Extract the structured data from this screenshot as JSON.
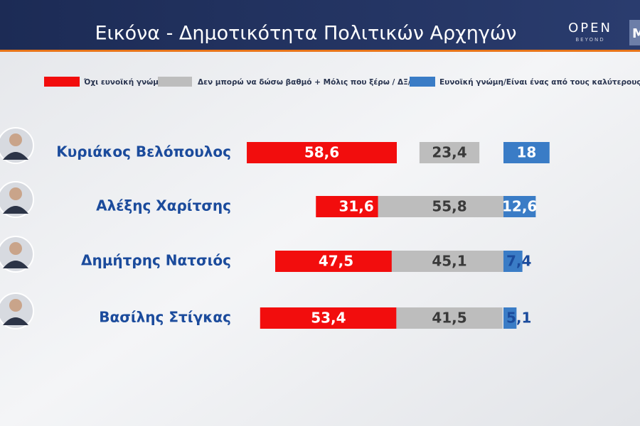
{
  "header": {
    "title": "Εικόνα - Δημοτικότητα Πολιτικών Αρχηγών",
    "logo": "OPEN",
    "logo_sub": "BEYOND",
    "logo_cut": "M"
  },
  "chart_data": {
    "type": "diverging-bar",
    "categories": [
      "Κυριάκος Βελόπουλος",
      "Αλέξης Χαρίτσης",
      "Δημήτρης Νατσιός",
      "Βασίλης Στίγκας"
    ],
    "series": [
      {
        "name": "Όχι ευνοϊκή γνώμη",
        "color": "#f20d0d",
        "values": [
          58.6,
          31.6,
          47.5,
          53.4
        ],
        "value_labels": [
          "58,6",
          "31,6",
          "47,5",
          "53,4"
        ]
      },
      {
        "name": "Δεν μπορώ να δώσω βαθμό + Μόλις που ξέρω / ΔΞ/ΔΑ",
        "color": "#bdbdbd",
        "values": [
          23.4,
          55.8,
          45.1,
          41.5
        ],
        "value_labels": [
          "23,4",
          "55,8",
          "45,1",
          "41,5"
        ]
      },
      {
        "name": "Ευνοϊκή γνώμη/Είναι ένας από τους καλύτερους",
        "color": "#3a7cc6",
        "values": [
          18,
          12.6,
          7.4,
          5.1
        ],
        "value_labels": [
          "18",
          "12,6",
          "7,4",
          "5,1"
        ]
      }
    ]
  }
}
